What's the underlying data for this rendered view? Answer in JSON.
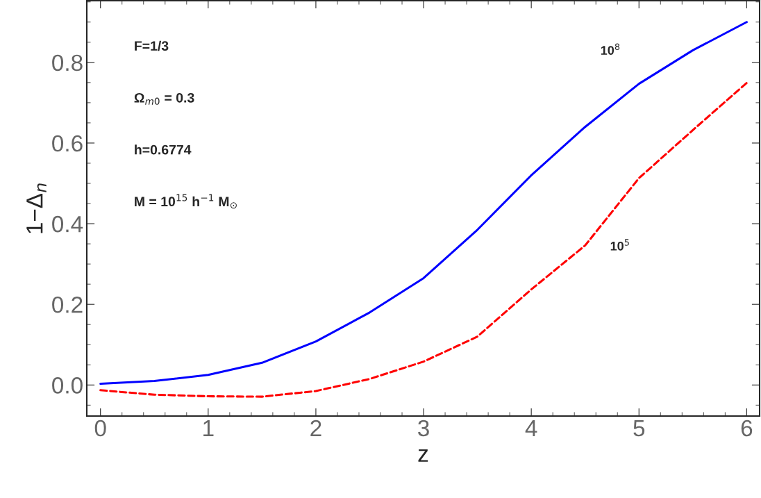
{
  "chart_data": {
    "type": "line",
    "xlabel": "z",
    "ylabel": "1−Δ$_{n}$",
    "x": [
      0,
      0.5,
      1,
      1.5,
      2,
      2.5,
      3,
      3.5,
      4,
      4.5,
      5,
      5.5,
      6
    ],
    "series": [
      {
        "name": "10$^{8}$",
        "color": "#0000ff",
        "line_style": "solid",
        "values": [
          0.003,
          0.01,
          0.025,
          0.055,
          0.108,
          0.18,
          0.265,
          0.385,
          0.52,
          0.64,
          0.747,
          0.83,
          0.9
        ]
      },
      {
        "name": "10$^{5}$",
        "color": "#ff0000",
        "line_style": "dashed",
        "values": [
          -0.013,
          -0.024,
          -0.028,
          -0.029,
          -0.015,
          0.015,
          0.058,
          0.12,
          0.237,
          0.346,
          0.513,
          0.632,
          0.749
        ]
      }
    ],
    "annotations": [
      "F=1/3",
      "Ω$_{m0}$ = 0.3",
      "h=0.6774",
      "M = 10$^{15}$ h$^{−1}$ M$_{⊙}$"
    ],
    "xlim": [
      -0.127,
      6.12
    ],
    "ylim": [
      -0.077,
      0.953
    ],
    "xticks": [
      0,
      1,
      2,
      3,
      4,
      5,
      6
    ],
    "yticks": [
      {
        "value": 0,
        "label": "0.0"
      },
      0.2,
      0.4,
      0.6,
      0.8
    ],
    "grid": false,
    "legend": false
  }
}
